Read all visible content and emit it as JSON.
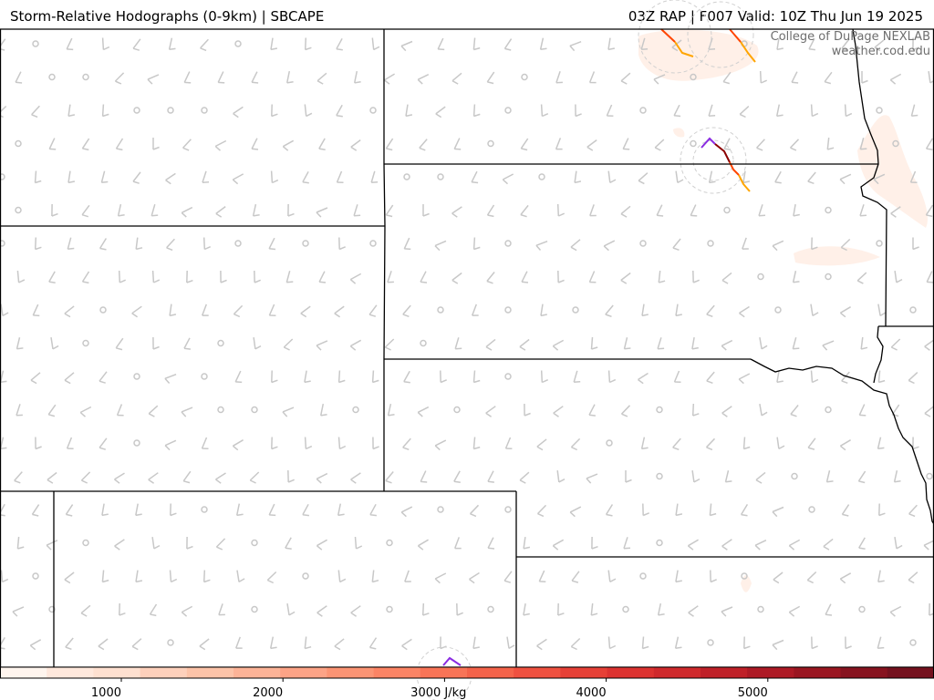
{
  "header": {
    "title": "Storm-Relative Hodographs (0-9km) | SBCAPE",
    "run_info": "03Z RAP | F007 Valid: 10Z Thu Jun 19 2025"
  },
  "credit": {
    "line1": "College of DuPage NEXLAB",
    "line2": "weather.cod.edu"
  },
  "colorbar": {
    "min": 0,
    "max": 6000,
    "ticks": [
      {
        "value": 1000,
        "label": "1000"
      },
      {
        "value": 2000,
        "label": "2000"
      },
      {
        "value": 3000,
        "label": "3000 J/kg"
      },
      {
        "value": 4000,
        "label": "4000"
      },
      {
        "value": 5000,
        "label": "5000"
      }
    ],
    "colors": [
      "#fff5ee",
      "#ffe8dc",
      "#fee0d0",
      "#fdd0bb",
      "#fcc3a8",
      "#fcb397",
      "#fca386",
      "#fb9474",
      "#fb8465",
      "#f87457",
      "#f4634a",
      "#ef5140",
      "#e64036",
      "#dc3230",
      "#cf292c",
      "#bf2028",
      "#ad1a25",
      "#9a1621",
      "#87131f",
      "#74111e"
    ]
  },
  "colors": {
    "barb": "#c8c8c8",
    "border": "#000000",
    "hodo_0_1": "#8b008b",
    "hodo_low": "#8b0000",
    "hodo_mid": "#ff4500",
    "hodo_high": "#ffa500",
    "cape_light": "#fff0e8"
  }
}
